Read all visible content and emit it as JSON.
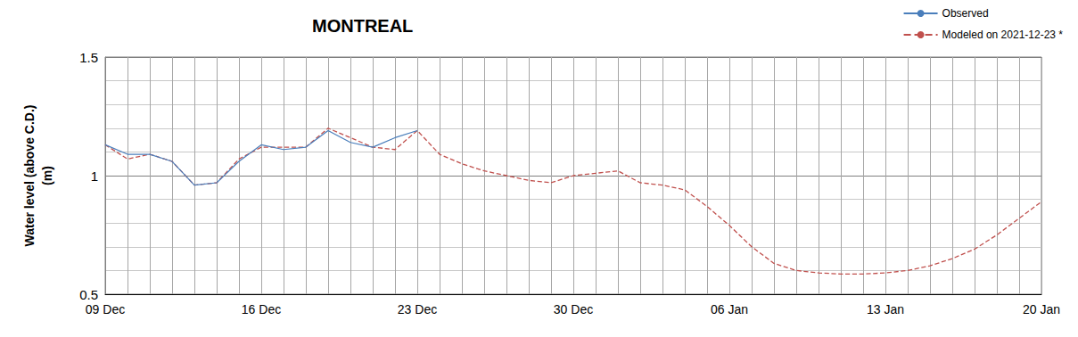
{
  "chart_data": {
    "type": "line",
    "title": "MONTREAL",
    "ylabel": "Water level (above C.D.)\n(m)",
    "categories": [
      "09 Dec",
      null,
      null,
      null,
      null,
      null,
      null,
      "16 Dec",
      null,
      null,
      null,
      null,
      null,
      null,
      "23 Dec",
      null,
      null,
      null,
      null,
      null,
      null,
      "30 Dec",
      null,
      null,
      null,
      null,
      null,
      null,
      "06 Jan",
      null,
      null,
      null,
      null,
      null,
      null,
      "13 Jan",
      null,
      null,
      null,
      null,
      null,
      null,
      "20 Jan"
    ],
    "series": [
      {
        "name": "Observed",
        "color": "#4a7ebb",
        "line_style": "solid",
        "values": [
          1.13,
          1.09,
          1.09,
          1.06,
          0.96,
          0.97,
          1.06,
          1.13,
          1.11,
          1.12,
          1.19,
          1.14,
          1.12,
          1.16,
          1.19,
          null,
          null,
          null,
          null,
          null,
          null,
          null,
          null,
          null,
          null,
          null,
          null,
          null,
          null,
          null,
          null,
          null,
          null,
          null,
          null,
          null,
          null,
          null,
          null,
          null,
          null,
          null,
          null
        ]
      },
      {
        "name": "Modeled on 2021-12-23 *",
        "color": "#c0504d",
        "line_style": "dashed",
        "values": [
          1.13,
          1.07,
          1.09,
          1.06,
          0.96,
          0.97,
          1.07,
          1.12,
          1.12,
          1.12,
          1.2,
          1.16,
          1.12,
          1.11,
          1.19,
          1.09,
          1.05,
          1.02,
          1.0,
          0.98,
          0.97,
          1.0,
          1.01,
          1.02,
          0.97,
          0.96,
          0.94,
          0.87,
          0.79,
          0.7,
          0.63,
          0.6,
          0.59,
          0.585,
          0.585,
          0.59,
          0.6,
          0.62,
          0.65,
          0.69,
          0.75,
          0.82,
          0.89
        ]
      }
    ],
    "ylim": [
      0.5,
      1.5
    ],
    "yticks": [
      0.5,
      1,
      1.5
    ],
    "grid": true,
    "legend": "top-right"
  }
}
